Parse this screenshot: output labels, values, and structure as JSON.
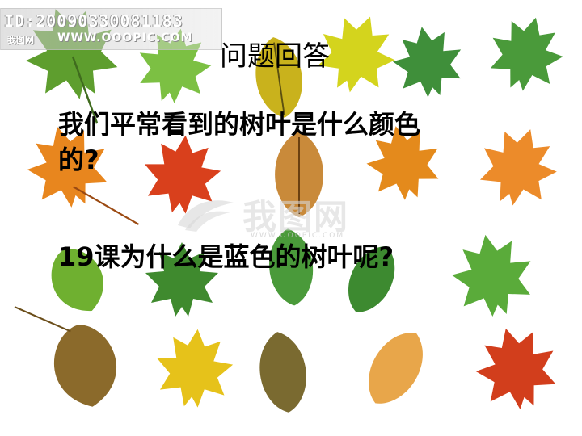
{
  "watermark": {
    "id_text": "ID:20090330081183",
    "brand_text": "我图网",
    "site_text": "WWW.OOOPIC.COM",
    "center_text": "我图网",
    "center_sub": "WWW.OOOPIC.COM"
  },
  "slide": {
    "title": "问题回答",
    "question1_line1": "我们平常看到的树叶是什么颜色",
    "question1_line2": "的?",
    "question2": "19课为什么是蓝色的树叶呢?"
  },
  "palette": {
    "green_dark": "#2f7d2a",
    "green_light": "#7cc043",
    "yellow": "#e6d21a",
    "orange": "#e8861e",
    "red": "#d9401c",
    "brown": "#8b5a2b"
  }
}
